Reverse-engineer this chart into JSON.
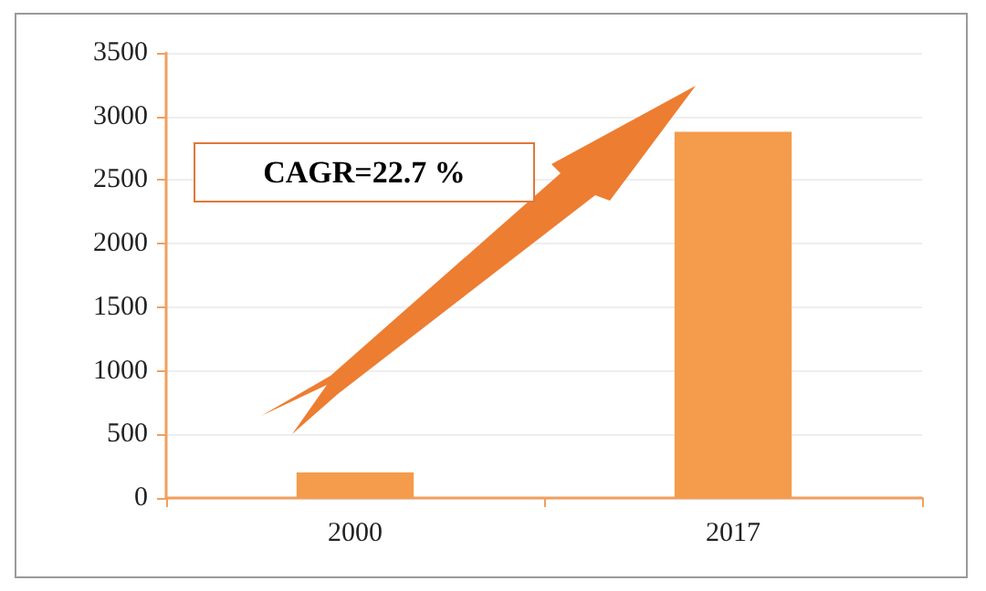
{
  "chart_data": {
    "type": "bar",
    "categories": [
      "2000",
      "2017"
    ],
    "values": [
      200,
      2880
    ],
    "color": "#f59b4c",
    "ylim": [
      0,
      3500
    ],
    "yticks": [
      0,
      500,
      1000,
      1500,
      2000,
      2500,
      3000,
      3500
    ],
    "grid": "y",
    "annotations": [
      "CAGR=22.7 %"
    ]
  }
}
